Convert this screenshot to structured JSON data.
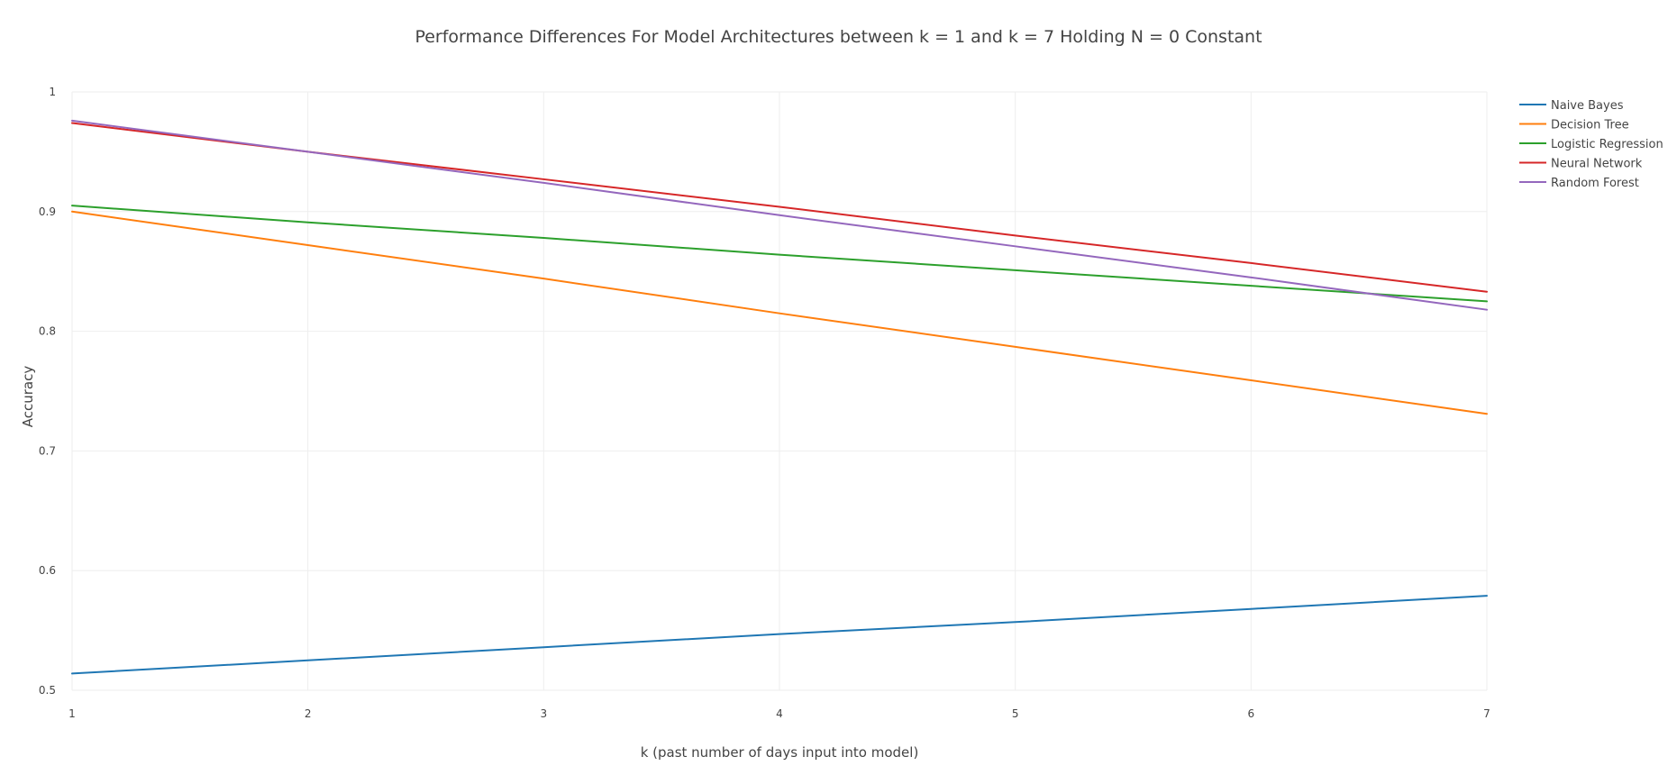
{
  "chart_data": {
    "type": "line",
    "title": "Performance Differences For Model Architectures between k = 1 and k = 7 Holding N = 0 Constant",
    "xlabel": "k (past number of days input into model)",
    "ylabel": "Accuracy",
    "xlim": [
      1,
      7
    ],
    "ylim": [
      0.5,
      1
    ],
    "xticks": [
      1,
      2,
      3,
      4,
      5,
      6,
      7
    ],
    "yticks": [
      0.5,
      0.6,
      0.7,
      0.8,
      0.9,
      1
    ],
    "ytick_labels": [
      "0.5",
      "0.6",
      "0.7",
      "0.8",
      "0.9",
      "1"
    ],
    "grid": true,
    "legend_position": "top-right",
    "x": [
      1,
      2,
      3,
      4,
      5,
      6,
      7
    ],
    "series": [
      {
        "name": "Naive Bayes",
        "color": "#1f77b4",
        "values": [
          0.514,
          0.525,
          0.536,
          0.547,
          0.557,
          0.568,
          0.579
        ]
      },
      {
        "name": "Decision Tree",
        "color": "#ff7f0e",
        "values": [
          0.9,
          0.872,
          0.844,
          0.815,
          0.787,
          0.759,
          0.731
        ]
      },
      {
        "name": "Logistic Regression",
        "color": "#2ca02c",
        "values": [
          0.905,
          0.891,
          0.878,
          0.864,
          0.851,
          0.838,
          0.825
        ]
      },
      {
        "name": "Neural Network",
        "color": "#d62728",
        "values": [
          0.974,
          0.95,
          0.927,
          0.904,
          0.88,
          0.857,
          0.833
        ]
      },
      {
        "name": "Random Forest",
        "color": "#9467bd",
        "values": [
          0.976,
          0.95,
          0.924,
          0.897,
          0.871,
          0.845,
          0.818
        ]
      }
    ]
  }
}
